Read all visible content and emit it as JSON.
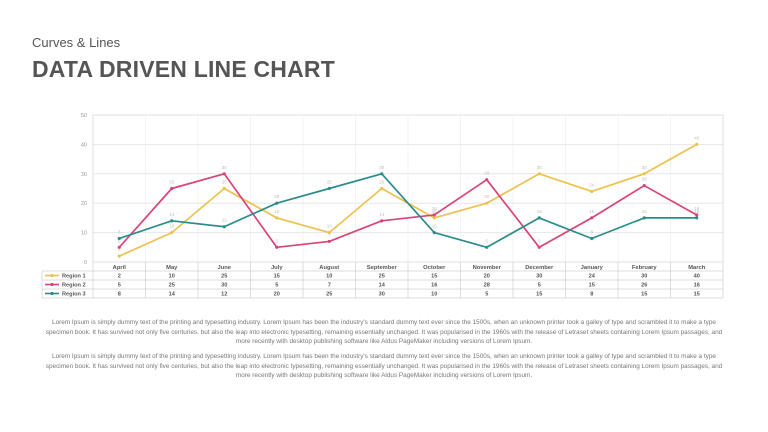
{
  "header": {
    "subtitle": "Curves & Lines",
    "title": "DATA DRIVEN LINE CHART"
  },
  "chart_data": {
    "type": "line",
    "categories": [
      "April",
      "May",
      "June",
      "July",
      "August",
      "September",
      "October",
      "November",
      "December",
      "January",
      "February",
      "March"
    ],
    "ylim": [
      0,
      50
    ],
    "yticks": [
      0,
      10,
      20,
      30,
      40,
      50
    ],
    "grid": true,
    "legend": "bottom table",
    "series": [
      {
        "name": "Region 1",
        "color": "#eec14f",
        "values": [
          2,
          10,
          25,
          15,
          10,
          25,
          15,
          20,
          30,
          24,
          30,
          40
        ]
      },
      {
        "name": "Region 2",
        "color": "#d9437a",
        "values": [
          5,
          25,
          30,
          5,
          7,
          14,
          16,
          28,
          5,
          15,
          26,
          16
        ]
      },
      {
        "name": "Region 3",
        "color": "#2a8c8c",
        "values": [
          8,
          14,
          12,
          20,
          25,
          30,
          10,
          5,
          15,
          8,
          15,
          15
        ]
      }
    ]
  },
  "body_text": {
    "p1": "Lorem Ipsum is simply dummy text of the printing and typesetting industry. Lorem Ipsum has been the industry's standard dummy text ever since the 1500s, when an unknown printer took a galley of type and scrambled it to make a type specimen book. It has survived not only five centuries, but also the leap into electronic typesetting, remaining essentially unchanged. It was popularised in the 1960s with the release of Letraset sheets containing Lorem Ipsum passages, and more recently with desktop publishing software like Aldus PageMaker including versions of Lorem Ipsum.",
    "p2": "Lorem Ipsum is simply dummy text of the printing and typesetting industry. Lorem Ipsum has been the industry's standard dummy text ever since the 1500s, when an unknown printer took a galley of type and scrambled it to make a type specimen book. It has survived not only five centuries, but also the leap into electronic typesetting, remaining essentially unchanged. It was popularised in the 1960s with the release of Letraset sheets containing Lorem Ipsum passages, and more recently with desktop publishing software like Aldus PageMaker including versions of Lorem Ipsum."
  }
}
